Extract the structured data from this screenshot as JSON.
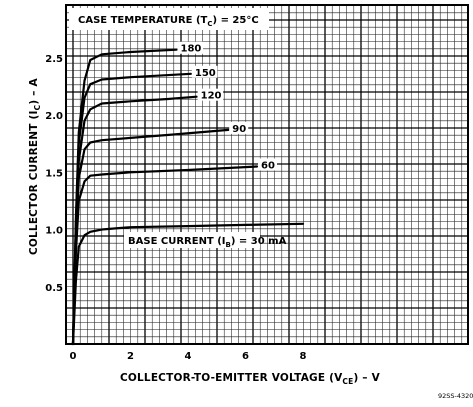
{
  "chart_data": {
    "type": "line",
    "title": "CASE TEMPERATURE (TC) = 25°C",
    "xlabel": "COLLECTOR-TO-EMITTER VOLTAGE (VCE) – V",
    "ylabel": "COLLECTOR CURRENT (IC) – A",
    "xlim": [
      0,
      8
    ],
    "ylim": [
      0,
      2.75
    ],
    "x_ticks": [
      "0",
      "2",
      "4",
      "6",
      "8"
    ],
    "y_ticks": [
      "0.5",
      "1.0",
      "1.5",
      "2.0",
      "2.5"
    ],
    "legend_label": "BASE CURRENT (IB) = 30 mA",
    "grid": true,
    "figure_number": "92SS-4320",
    "series": [
      {
        "name": "30",
        "label": "",
        "x": [
          0,
          0.1,
          0.2,
          0.4,
          0.6,
          1,
          2,
          4,
          6,
          8
        ],
        "y": [
          0,
          0.55,
          0.85,
          0.95,
          0.98,
          1.0,
          1.02,
          1.03,
          1.04,
          1.05
        ]
      },
      {
        "name": "60",
        "label": "60",
        "x": [
          0,
          0.1,
          0.2,
          0.4,
          0.6,
          1,
          2,
          4,
          6.4
        ],
        "y": [
          0,
          0.8,
          1.25,
          1.42,
          1.47,
          1.48,
          1.5,
          1.52,
          1.55
        ]
      },
      {
        "name": "90",
        "label": "90",
        "x": [
          0,
          0.1,
          0.2,
          0.4,
          0.6,
          1,
          2,
          3.5,
          5.4
        ],
        "y": [
          0,
          0.9,
          1.45,
          1.7,
          1.76,
          1.78,
          1.8,
          1.83,
          1.87
        ]
      },
      {
        "name": "120",
        "label": "120",
        "x": [
          0,
          0.1,
          0.2,
          0.4,
          0.6,
          1,
          2,
          3.3,
          4.3
        ],
        "y": [
          0,
          1.0,
          1.6,
          1.95,
          2.05,
          2.1,
          2.12,
          2.14,
          2.16
        ]
      },
      {
        "name": "150",
        "label": "150",
        "x": [
          0,
          0.1,
          0.2,
          0.4,
          0.6,
          1,
          2,
          4.1
        ],
        "y": [
          0,
          1.05,
          1.75,
          2.15,
          2.27,
          2.31,
          2.33,
          2.36
        ]
      },
      {
        "name": "180",
        "label": "180",
        "x": [
          0,
          0.1,
          0.2,
          0.4,
          0.6,
          1,
          2,
          3.6
        ],
        "y": [
          0,
          1.1,
          1.85,
          2.3,
          2.48,
          2.53,
          2.55,
          2.57
        ]
      }
    ]
  }
}
